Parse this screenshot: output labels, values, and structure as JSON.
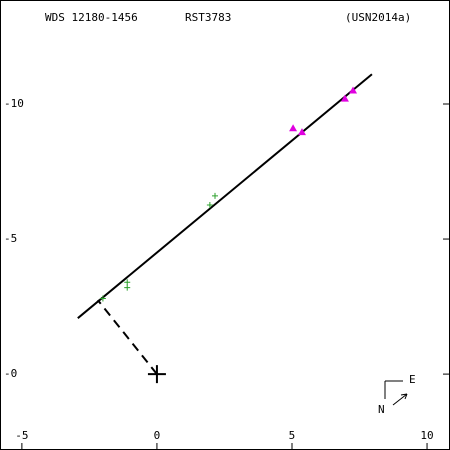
{
  "chart_data": {
    "type": "scatter",
    "title": "WDS 12180-1456",
    "subtitle": "RST3783",
    "reference": "(USN2014a)",
    "xlim": [
      -5.81,
      10.85
    ],
    "ylim": [
      2.81,
      -13.85
    ],
    "xticks": [
      -5,
      0,
      5,
      10
    ],
    "yticks": [
      -10,
      -5,
      {
        "value": 0,
        "label": "-0"
      }
    ],
    "compass": {
      "east": "E",
      "north": "N"
    },
    "series": [
      {
        "marker": "line",
        "color": "#000000",
        "x": [
          -2.93,
          7.96
        ],
        "values": [
          -2.07,
          -11.1
        ]
      },
      {
        "marker": "dashed-line",
        "color": "#000000",
        "x": [
          0,
          -2.19
        ],
        "values": [
          0,
          -2.74
        ]
      },
      {
        "marker": "cross",
        "color": "#000000",
        "x": [
          0
        ],
        "values": [
          0
        ]
      },
      {
        "marker": "plus",
        "color": "#2ca02c",
        "x": [
          -2.0,
          -1.1,
          -1.1,
          1.96,
          2.15
        ],
        "values": [
          -2.8,
          -3.2,
          -3.4,
          -6.26,
          -6.6
        ]
      },
      {
        "marker": "triangle",
        "color": "#e000e0",
        "x": [
          5.04,
          5.37,
          6.96,
          7.26
        ],
        "values": [
          -9.1,
          -8.96,
          -10.2,
          -10.5
        ]
      }
    ]
  }
}
